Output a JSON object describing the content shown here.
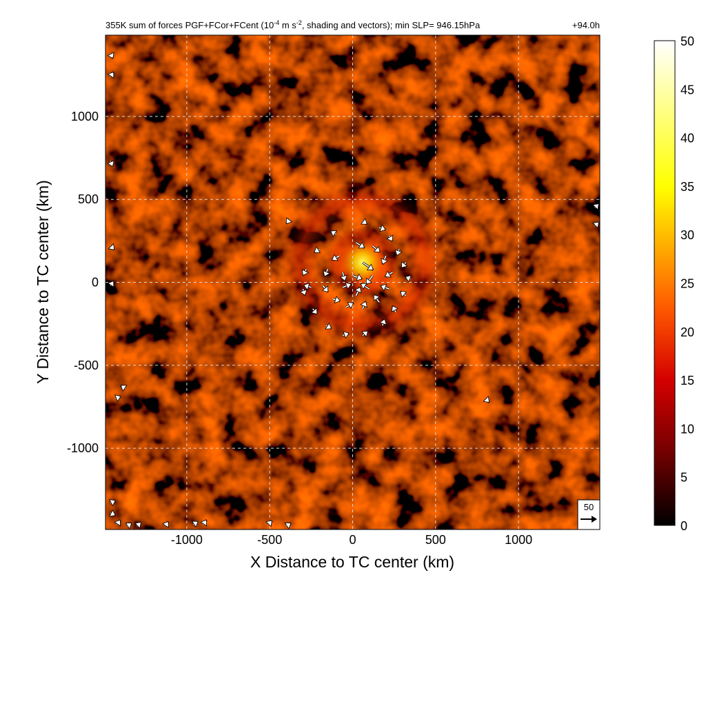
{
  "chart_data": {
    "type": "heatmap",
    "title_parts": {
      "prefix": "355K sum of forces PGF+FCor+FCent (10",
      "exp1": "-4",
      "mid": " m s",
      "exp2": "-2",
      "suffix": ", shading and vectors); min SLP= 946.15hPa",
      "time": "+94.0h"
    },
    "xlabel": "X Distance to TC center (km)",
    "ylabel": "Y Distance to TC center (km)",
    "xlim": [
      -1490,
      1490
    ],
    "ylim": [
      -1490,
      1490
    ],
    "xticks": [
      -1000,
      -500,
      0,
      500,
      1000
    ],
    "yticks": [
      -1000,
      -500,
      0,
      500,
      1000
    ],
    "grid": true,
    "colorbar": {
      "min": 0,
      "max": 50,
      "ticks": [
        0,
        5,
        10,
        15,
        20,
        25,
        30,
        35,
        40,
        45,
        50
      ],
      "colors": [
        "#000000",
        "#7a0000",
        "#d40000",
        "#ff5a00",
        "#ffb000",
        "#ffff00",
        "#ffffff"
      ],
      "position": "right"
    },
    "reference_vector": {
      "magnitude": 50,
      "label": "50"
    },
    "features": {
      "core_center": [
        60,
        120
      ],
      "core_peak": 38,
      "ring_radius": 390,
      "background_level": 6
    },
    "vectors": [
      {
        "x": 60,
        "y": 370,
        "u": 8,
        "v": -6
      },
      {
        "x": 160,
        "y": 330,
        "u": 12,
        "v": -4
      },
      {
        "x": 220,
        "y": 280,
        "u": 6,
        "v": -10
      },
      {
        "x": 280,
        "y": 200,
        "u": -4,
        "v": -12
      },
      {
        "x": 320,
        "y": 120,
        "u": -8,
        "v": -10
      },
      {
        "x": 350,
        "y": 20,
        "u": -10,
        "v": 4
      },
      {
        "x": 320,
        "y": -80,
        "u": -10,
        "v": 8
      },
      {
        "x": 260,
        "y": -180,
        "u": -6,
        "v": 12
      },
      {
        "x": 180,
        "y": -260,
        "u": 4,
        "v": 12
      },
      {
        "x": 60,
        "y": -320,
        "u": 10,
        "v": 8
      },
      {
        "x": -60,
        "y": -320,
        "u": 12,
        "v": 4
      },
      {
        "x": -160,
        "y": -260,
        "u": 10,
        "v": -6
      },
      {
        "x": -240,
        "y": -160,
        "u": 8,
        "v": -10
      },
      {
        "x": -300,
        "y": -40,
        "u": 4,
        "v": -12
      },
      {
        "x": -280,
        "y": 80,
        "u": -6,
        "v": -12
      },
      {
        "x": -200,
        "y": 200,
        "u": -10,
        "v": -6
      },
      {
        "x": -100,
        "y": 290,
        "u": -10,
        "v": 6
      },
      {
        "x": 20,
        "y": 240,
        "u": 16,
        "v": -10
      },
      {
        "x": 120,
        "y": 220,
        "u": 14,
        "v": -12
      },
      {
        "x": 200,
        "y": 160,
        "u": -6,
        "v": -16
      },
      {
        "x": 240,
        "y": 60,
        "u": -14,
        "v": -8
      },
      {
        "x": 220,
        "y": -40,
        "u": -16,
        "v": 6
      },
      {
        "x": 160,
        "y": -120,
        "u": -10,
        "v": 14
      },
      {
        "x": 60,
        "y": -160,
        "u": 6,
        "v": 14
      },
      {
        "x": -40,
        "y": -150,
        "u": 14,
        "v": 8
      },
      {
        "x": -120,
        "y": -100,
        "u": 14,
        "v": -4
      },
      {
        "x": -180,
        "y": -20,
        "u": 10,
        "v": -12
      },
      {
        "x": -150,
        "y": 80,
        "u": -6,
        "v": -14
      },
      {
        "x": -80,
        "y": 160,
        "u": -14,
        "v": -8
      },
      {
        "x": 60,
        "y": 120,
        "u": 20,
        "v": -14
      },
      {
        "x": 120,
        "y": 40,
        "u": -12,
        "v": -16
      },
      {
        "x": 100,
        "y": -40,
        "u": -16,
        "v": 10
      },
      {
        "x": 20,
        "y": -80,
        "u": 8,
        "v": 16
      },
      {
        "x": -60,
        "y": -30,
        "u": 16,
        "v": 6
      },
      {
        "x": -60,
        "y": 60,
        "u": 4,
        "v": -16
      },
      {
        "x": 0,
        "y": 40,
        "u": 18,
        "v": -6
      },
      {
        "x": -250,
        "y": -30,
        "u": -14,
        "v": 4
      },
      {
        "x": -380,
        "y": 380,
        "u": -6,
        "v": -8
      },
      {
        "x": -1460,
        "y": 1380,
        "u": 4,
        "v": -8
      },
      {
        "x": -1460,
        "y": 1240,
        "u": 4,
        "v": 6
      },
      {
        "x": -1460,
        "y": 730,
        "u": 4,
        "v": -10
      },
      {
        "x": -1460,
        "y": 220,
        "u": 6,
        "v": -6
      },
      {
        "x": -1460,
        "y": -20,
        "u": 4,
        "v": 6
      },
      {
        "x": -1430,
        "y": -700,
        "u": 10,
        "v": 4
      },
      {
        "x": -1370,
        "y": -640,
        "u": -6,
        "v": 4
      },
      {
        "x": -1460,
        "y": -1330,
        "u": 8,
        "v": 4
      },
      {
        "x": -1460,
        "y": -1390,
        "u": 8,
        "v": -4
      },
      {
        "x": -1420,
        "y": -1460,
        "u": 4,
        "v": 6
      },
      {
        "x": -1360,
        "y": -1470,
        "u": 6,
        "v": 4
      },
      {
        "x": -1300,
        "y": -1470,
        "u": 4,
        "v": 4
      },
      {
        "x": -1130,
        "y": -1470,
        "u": 4,
        "v": 6
      },
      {
        "x": -960,
        "y": -1460,
        "u": 6,
        "v": 4
      },
      {
        "x": -900,
        "y": -1460,
        "u": 4,
        "v": 6
      },
      {
        "x": -510,
        "y": -1460,
        "u": 6,
        "v": 6
      },
      {
        "x": -400,
        "y": -1470,
        "u": 6,
        "v": 4
      },
      {
        "x": 800,
        "y": -700,
        "u": 4,
        "v": -4
      },
      {
        "x": 1460,
        "y": 340,
        "u": 4,
        "v": 4
      },
      {
        "x": 1460,
        "y": 450,
        "u": 4,
        "v": 4
      }
    ]
  }
}
